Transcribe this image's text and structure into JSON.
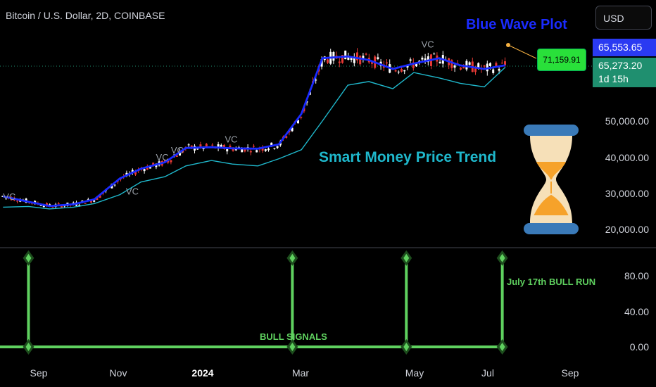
{
  "header": {
    "title": "Bitcoin / U.S. Dollar, 2D, COINBASE",
    "currency_button": "USD"
  },
  "price_axis": {
    "ticks": [
      "50,000.00",
      "40,000.00",
      "30,000.00",
      "20,000.00"
    ]
  },
  "price_tags": {
    "blue_wave": "65,553.65",
    "last_price": "65,273.20",
    "countdown": "1d 15h"
  },
  "callout": {
    "value": "71,159.91"
  },
  "annotations": {
    "blue_wave": "Blue Wave Plot",
    "smart_money": "Smart Money Price Trend",
    "bull_signals": "BULL SIGNALS",
    "bull_run": "July 17th BULL RUN",
    "vc_marker": "VC"
  },
  "indicator_axis": {
    "ticks": [
      "80.00",
      "40.00",
      "0.00"
    ]
  },
  "time_axis": [
    "Sep",
    "Nov",
    "2024",
    "Mar",
    "May",
    "Jul",
    "Sep"
  ],
  "colors": {
    "up": "#ffffff",
    "down": "#e53935",
    "blue_wave": "#1a2bff",
    "smart_money": "#1fb8cc",
    "signal": "#5fd15f",
    "background": "#000000"
  },
  "icons": {
    "hourglass": "hourglass-icon"
  },
  "chart_data": [
    {
      "type": "line",
      "title": "Bitcoin / U.S. Dollar, 2D, COINBASE",
      "x": [
        "2023-08-15",
        "2023-09-01",
        "2023-09-15",
        "2023-10-01",
        "2023-10-15",
        "2023-11-01",
        "2023-11-15",
        "2023-12-01",
        "2023-12-15",
        "2024-01-01",
        "2024-01-15",
        "2024-02-01",
        "2024-02-15",
        "2024-03-01",
        "2024-03-15",
        "2024-04-01",
        "2024-04-15",
        "2024-05-01",
        "2024-05-15",
        "2024-06-01",
        "2024-06-15",
        "2024-07-01",
        "2024-07-15"
      ],
      "series": [
        {
          "name": "Blue Wave Plot",
          "values": [
            29000,
            27500,
            26300,
            26800,
            28200,
            34000,
            36700,
            38500,
            42500,
            42700,
            42400,
            42300,
            43500,
            52000,
            67500,
            68000,
            67000,
            64500,
            66000,
            67500,
            65500,
            64500,
            65553
          ]
        },
        {
          "values": [
            null,
            null,
            null,
            null,
            null,
            null,
            null,
            null,
            null,
            null,
            null,
            null,
            null,
            null,
            null,
            null,
            null,
            null,
            null,
            null,
            null,
            null,
            null
          ]
        }
      ],
      "ylim": [
        17000,
        75000
      ],
      "callout_value": 71159.91,
      "last_price": 65273.2
    },
    {
      "type": "bar",
      "x": [
        "2023-09-01",
        "2024-02-24",
        "2024-05-10",
        "2024-07-13"
      ],
      "values": [
        100,
        100,
        100,
        100
      ],
      "ylim": [
        0,
        110
      ]
    }
  ]
}
